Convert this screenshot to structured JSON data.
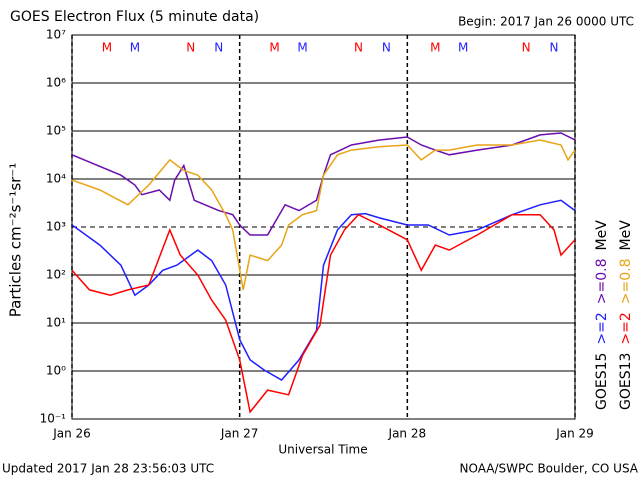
{
  "chart_data": {
    "type": "line",
    "title": "GOES Electron Flux (5 minute data)",
    "subtitle": "Begin: 2017 Jan 26 0000 UTC",
    "x_label": "Universal Time",
    "y_label": "Particles cm⁻²s⁻¹sr⁻¹",
    "footer_left": "Updated 2017 Jan 28 23:56:03 UTC",
    "footer_right": "NOAA/SWPC Boulder, CO USA",
    "log_scale": true,
    "grid": true,
    "threshold": 1000,
    "xlim": [
      0,
      72
    ],
    "xticks": [
      {
        "value": 0,
        "label": "Jan 26"
      },
      {
        "value": 24,
        "label": "Jan 27"
      },
      {
        "value": 48,
        "label": "Jan 28"
      },
      {
        "value": 72,
        "label": "Jan 29"
      }
    ],
    "ylim": [
      0.1,
      10000000
    ],
    "yticks": [
      {
        "value": 0.1,
        "label": "10⁻¹"
      },
      {
        "value": 1,
        "label": "10⁰"
      },
      {
        "value": 10,
        "label": "10¹"
      },
      {
        "value": 100,
        "label": "10²"
      },
      {
        "value": 1000,
        "label": "10³"
      },
      {
        "value": 10000,
        "label": "10⁴"
      },
      {
        "value": 100000,
        "label": "10⁵"
      },
      {
        "value": 1000000,
        "label": "10⁶"
      },
      {
        "value": 10000000,
        "label": "10⁷"
      }
    ],
    "groups": [
      {
        "label": "GOES15",
        "unit": "MeV"
      },
      {
        "label": "GOES13",
        "unit": "MeV"
      }
    ],
    "series": [
      {
        "name": ">=2",
        "color": "#1f1fff",
        "x": [
          0,
          4,
          7,
          9,
          11,
          13,
          15,
          18,
          20,
          22,
          24,
          25.5,
          27.5,
          30,
          32.5,
          35,
          36,
          38,
          40,
          42,
          44,
          48,
          51,
          54,
          58,
          63,
          67,
          70,
          72
        ],
        "values": [
          1100,
          420,
          160,
          38,
          62,
          125,
          160,
          330,
          200,
          62,
          4.5,
          1.7,
          1.05,
          0.65,
          1.7,
          7,
          160,
          870,
          1800,
          1900,
          1550,
          1100,
          1100,
          680,
          870,
          1800,
          2900,
          3600,
          2200
        ]
      },
      {
        "name": ">=0.8",
        "color": "#6a0dad",
        "x": [
          0,
          7,
          9,
          10,
          12.5,
          14,
          14.7,
          16,
          17.5,
          21,
          23,
          24,
          25.5,
          28,
          30.5,
          32.5,
          35,
          36,
          37,
          40,
          44,
          48,
          50,
          52,
          54,
          58,
          63,
          67,
          70,
          72
        ],
        "values": [
          32000,
          12000,
          7500,
          4700,
          5900,
          3600,
          9500,
          19000,
          3600,
          2200,
          1800,
          1100,
          680,
          680,
          2900,
          2200,
          3600,
          12000,
          32000,
          51000,
          65000,
          75000,
          51000,
          40000,
          32000,
          40000,
          51000,
          83000,
          91000,
          65000
        ]
      },
      {
        "name": ">=2",
        "color": "#ff0000",
        "x": [
          0,
          2.5,
          5.5,
          8,
          11,
          14,
          15.5,
          18,
          20,
          22,
          24,
          25.5,
          28,
          31,
          33,
          35.5,
          37,
          39,
          41,
          44,
          48,
          50,
          52,
          54,
          58,
          63,
          67,
          69,
          70,
          72
        ],
        "values": [
          125,
          49,
          38,
          49,
          62,
          870,
          260,
          100,
          30,
          11.5,
          1.7,
          0.14,
          0.4,
          0.32,
          2.1,
          9,
          260,
          870,
          1800,
          1100,
          540,
          125,
          420,
          330,
          680,
          1800,
          1800,
          870,
          260,
          540
        ]
      },
      {
        "name": ">=0.8",
        "color": "#e8a317",
        "x": [
          0,
          4,
          8,
          11,
          14,
          16,
          18,
          20,
          22,
          23,
          24.5,
          25.5,
          28,
          30,
          31,
          33,
          35,
          36,
          38,
          40,
          44,
          48,
          50,
          52,
          54,
          58,
          63,
          67,
          70,
          71,
          72
        ],
        "values": [
          9500,
          5900,
          2900,
          7500,
          25000,
          15000,
          12000,
          5900,
          1800,
          870,
          49,
          260,
          200,
          420,
          1100,
          1800,
          2200,
          12000,
          32000,
          40000,
          47000,
          51000,
          25000,
          40000,
          40000,
          51000,
          51000,
          65000,
          51000,
          25000,
          40000
        ]
      }
    ],
    "annotations": [
      {
        "text": "M",
        "x": 5,
        "color": "#ff0000"
      },
      {
        "text": "M",
        "x": 9,
        "color": "#1f1fff"
      },
      {
        "text": "N",
        "x": 17,
        "color": "#ff0000"
      },
      {
        "text": "N",
        "x": 21,
        "color": "#1f1fff"
      },
      {
        "text": "M",
        "x": 29,
        "color": "#ff0000"
      },
      {
        "text": "M",
        "x": 33,
        "color": "#1f1fff"
      },
      {
        "text": "N",
        "x": 41,
        "color": "#ff0000"
      },
      {
        "text": "N",
        "x": 45,
        "color": "#1f1fff"
      },
      {
        "text": "M",
        "x": 52,
        "color": "#ff0000"
      },
      {
        "text": "M",
        "x": 56,
        "color": "#1f1fff"
      },
      {
        "text": "N",
        "x": 65,
        "color": "#ff0000"
      },
      {
        "text": "N",
        "x": 69,
        "color": "#1f1fff"
      }
    ]
  }
}
